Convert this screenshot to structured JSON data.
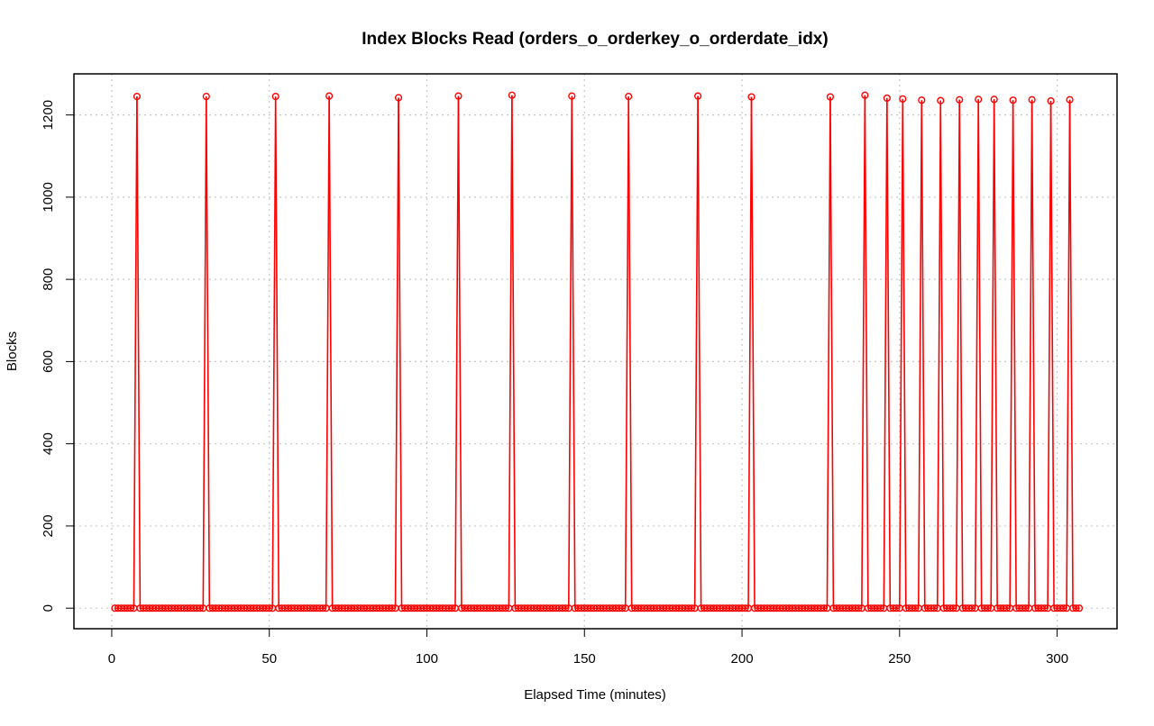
{
  "chart_data": {
    "type": "line",
    "title": "Index Blocks Read (orders_o_orderkey_o_orderdate_idx)",
    "xlabel": "Elapsed Time (minutes)",
    "ylabel": "Blocks",
    "xlim": [
      -12,
      319
    ],
    "ylim": [
      -50,
      1300
    ],
    "xticks": [
      0,
      50,
      100,
      150,
      200,
      250,
      300
    ],
    "yticks": [
      0,
      200,
      400,
      600,
      800,
      1000,
      1200
    ],
    "grid": true,
    "legend": "none",
    "series_color": "#ff0000",
    "baseline_range": [
      1,
      307
    ],
    "baseline_value": 0,
    "spikes": [
      {
        "x": 8,
        "y": 1245
      },
      {
        "x": 30,
        "y": 1245
      },
      {
        "x": 52,
        "y": 1245
      },
      {
        "x": 69,
        "y": 1246
      },
      {
        "x": 91,
        "y": 1242
      },
      {
        "x": 110,
        "y": 1246
      },
      {
        "x": 127,
        "y": 1248
      },
      {
        "x": 146,
        "y": 1246
      },
      {
        "x": 164,
        "y": 1245
      },
      {
        "x": 186,
        "y": 1246
      },
      {
        "x": 203,
        "y": 1244
      },
      {
        "x": 228,
        "y": 1244
      },
      {
        "x": 239,
        "y": 1248
      },
      {
        "x": 246,
        "y": 1241
      },
      {
        "x": 251,
        "y": 1239
      },
      {
        "x": 257,
        "y": 1236
      },
      {
        "x": 263,
        "y": 1235
      },
      {
        "x": 269,
        "y": 1237
      },
      {
        "x": 275,
        "y": 1238
      },
      {
        "x": 280,
        "y": 1238
      },
      {
        "x": 286,
        "y": 1236
      },
      {
        "x": 292,
        "y": 1237
      },
      {
        "x": 298,
        "y": 1234
      },
      {
        "x": 304,
        "y": 1237
      }
    ]
  }
}
